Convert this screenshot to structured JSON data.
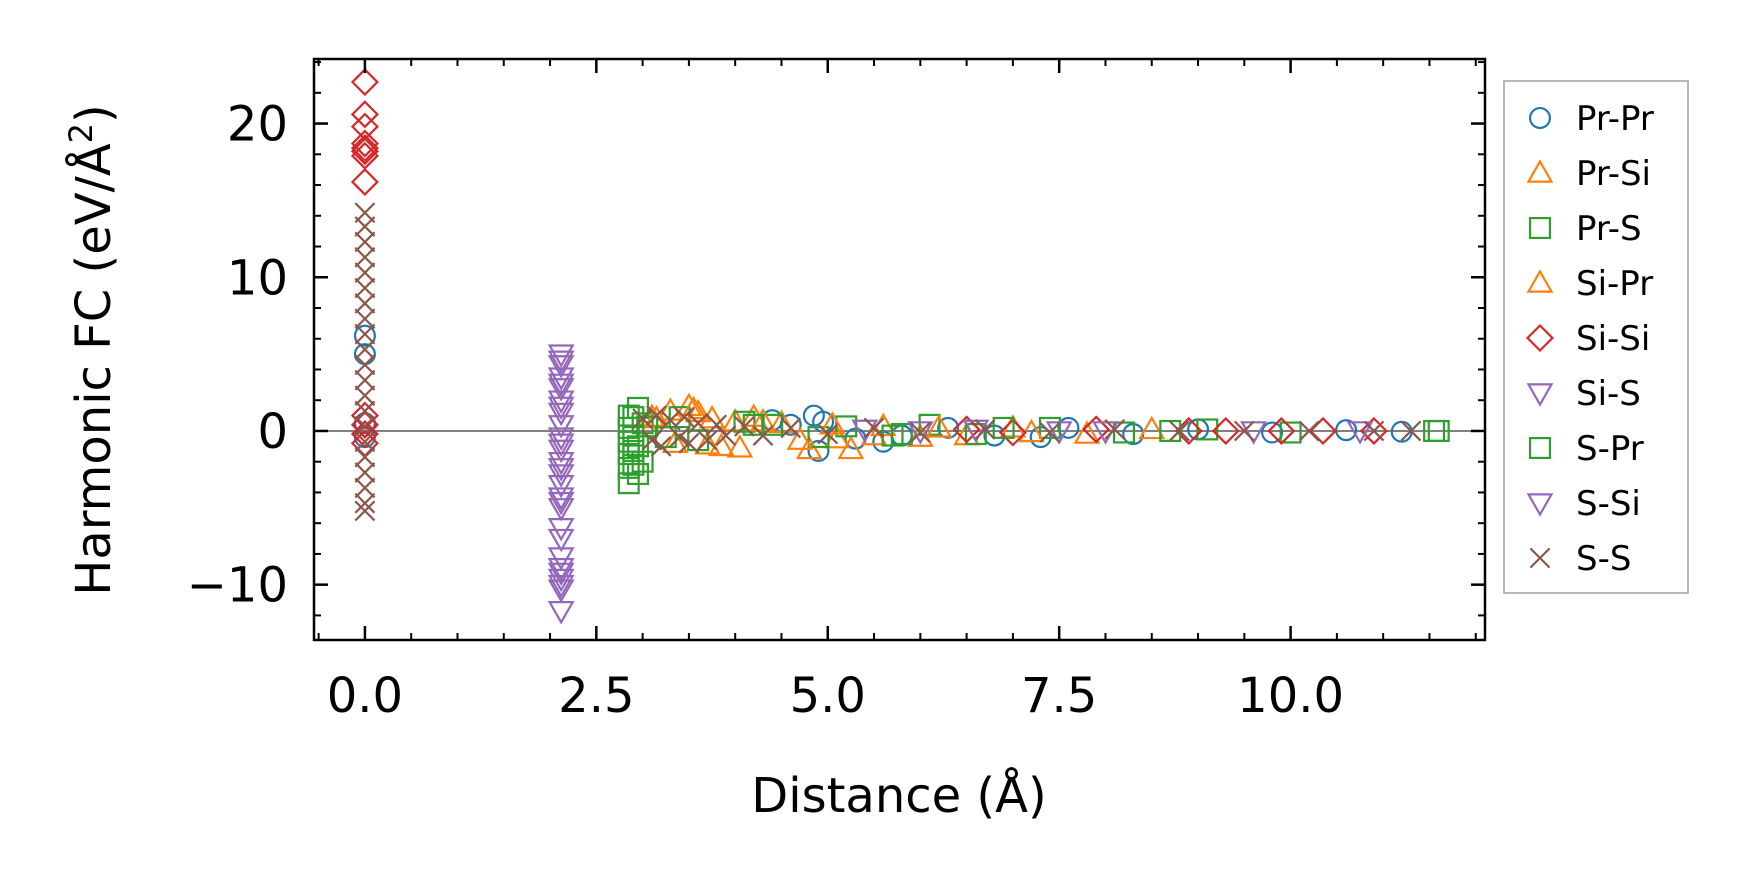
{
  "chart_data": {
    "type": "scatter",
    "title": "",
    "xlabel": "Distance (Å)",
    "ylabel_main": "Harmonic FC (eV/Å",
    "ylabel_sup": "2",
    "ylabel_close": ")",
    "xlim": [
      -0.55,
      12.1
    ],
    "ylim": [
      -13.6,
      24.2
    ],
    "xticks": [
      0.0,
      2.5,
      5.0,
      7.5,
      10.0
    ],
    "xtick_labels": [
      "0.0",
      "2.5",
      "5.0",
      "7.5",
      "10.0"
    ],
    "yticks": [
      -10,
      0,
      10,
      20
    ],
    "ytick_labels": [
      "−10",
      "0",
      "10",
      "20"
    ],
    "zero_line": 0,
    "legend_position": "right, outside axes",
    "series": [
      {
        "name": "Pr-Pr",
        "marker": "circle",
        "color": "#1f77b4",
        "points": [
          [
            0.0,
            6.2
          ],
          [
            0.0,
            5.0
          ],
          [
            0.0,
            0.5
          ],
          [
            0.0,
            -0.4
          ],
          [
            4.4,
            0.7
          ],
          [
            4.6,
            0.4
          ],
          [
            4.85,
            1.0
          ],
          [
            4.9,
            -1.3
          ],
          [
            4.95,
            0.6
          ],
          [
            5.3,
            -0.5
          ],
          [
            5.6,
            -0.7
          ],
          [
            5.8,
            -0.3
          ],
          [
            6.3,
            0.2
          ],
          [
            6.8,
            -0.3
          ],
          [
            7.3,
            -0.4
          ],
          [
            7.6,
            0.2
          ],
          [
            8.3,
            -0.2
          ],
          [
            9.0,
            0.1
          ],
          [
            9.8,
            -0.1
          ],
          [
            10.6,
            0.05
          ],
          [
            11.2,
            -0.05
          ]
        ]
      },
      {
        "name": "Pr-Si",
        "marker": "triangle-up",
        "color": "#ff7f0e",
        "points": [
          [
            3.1,
            0.9
          ],
          [
            3.3,
            1.3
          ],
          [
            3.5,
            1.6
          ],
          [
            3.6,
            1.2
          ],
          [
            3.7,
            -0.9
          ],
          [
            3.75,
            0.8
          ],
          [
            4.0,
            0.6
          ],
          [
            4.05,
            -1.1
          ],
          [
            4.2,
            0.9
          ],
          [
            4.5,
            0.5
          ],
          [
            4.8,
            -1.2
          ],
          [
            5.1,
            -0.5
          ],
          [
            5.25,
            -1.2
          ],
          [
            5.6,
            0.3
          ],
          [
            6.0,
            -0.4
          ],
          [
            6.5,
            -0.3
          ],
          [
            7.0,
            0.2
          ],
          [
            7.8,
            -0.2
          ],
          [
            8.5,
            0.1
          ]
        ]
      },
      {
        "name": "Pr-S",
        "marker": "square",
        "color": "#2ca02c",
        "points": [
          [
            2.85,
            1.0
          ],
          [
            2.85,
            0.2
          ],
          [
            2.85,
            -0.7
          ],
          [
            2.85,
            -1.5
          ],
          [
            2.85,
            -2.4
          ],
          [
            2.85,
            -3.4
          ],
          [
            2.95,
            1.5
          ],
          [
            2.95,
            -1.0
          ],
          [
            2.95,
            -2.8
          ],
          [
            3.0,
            0.5
          ],
          [
            3.0,
            -2.0
          ],
          [
            3.4,
            0.9
          ],
          [
            3.6,
            -0.6
          ],
          [
            4.1,
            0.6
          ],
          [
            4.4,
            0.4
          ],
          [
            4.9,
            -0.4
          ],
          [
            5.2,
            0.3
          ],
          [
            5.8,
            -0.2
          ],
          [
            6.1,
            0.4
          ],
          [
            6.6,
            -0.2
          ],
          [
            7.4,
            0.2
          ],
          [
            8.2,
            -0.1
          ],
          [
            9.1,
            0.1
          ],
          [
            10.0,
            -0.1
          ],
          [
            11.6,
            0.0
          ]
        ]
      },
      {
        "name": "Si-Pr",
        "marker": "triangle-up",
        "color": "#ff7f0e",
        "points": [
          [
            3.15,
            0.8
          ],
          [
            3.35,
            -0.8
          ],
          [
            3.55,
            1.4
          ],
          [
            3.85,
            -1.0
          ],
          [
            4.3,
            0.6
          ],
          [
            4.7,
            -0.6
          ],
          [
            5.05,
            0.4
          ],
          [
            5.5,
            -0.3
          ],
          [
            6.2,
            0.2
          ],
          [
            7.2,
            -0.1
          ]
        ]
      },
      {
        "name": "Si-Si",
        "marker": "diamond",
        "color": "#d62728",
        "points": [
          [
            0.0,
            22.7
          ],
          [
            0.0,
            20.6
          ],
          [
            0.0,
            19.8
          ],
          [
            0.0,
            18.7
          ],
          [
            0.0,
            18.4
          ],
          [
            0.0,
            18.2
          ],
          [
            0.0,
            17.9
          ],
          [
            0.0,
            16.2
          ],
          [
            0.0,
            1.0
          ],
          [
            0.0,
            0.4
          ],
          [
            0.0,
            -0.2
          ],
          [
            0.0,
            -0.8
          ],
          [
            6.5,
            0.1
          ],
          [
            7.0,
            -0.1
          ],
          [
            7.9,
            0.1
          ],
          [
            8.9,
            0.0
          ],
          [
            9.3,
            0.0
          ],
          [
            9.9,
            0.0
          ],
          [
            10.35,
            0.0
          ],
          [
            10.9,
            0.0
          ]
        ]
      },
      {
        "name": "Si-S",
        "marker": "triangle-down",
        "color": "#9467bd",
        "points": [
          [
            2.12,
            5.0
          ],
          [
            2.12,
            4.3
          ],
          [
            2.12,
            3.5
          ],
          [
            2.12,
            2.8
          ],
          [
            2.12,
            2.0
          ],
          [
            2.12,
            1.2
          ],
          [
            2.12,
            0.4
          ],
          [
            2.12,
            -0.4
          ],
          [
            2.12,
            -1.2
          ],
          [
            2.12,
            -2.0
          ],
          [
            2.12,
            -2.8
          ],
          [
            2.12,
            -3.5
          ],
          [
            2.12,
            -4.3
          ],
          [
            2.12,
            -5.0
          ],
          [
            2.12,
            -6.3
          ],
          [
            2.12,
            -8.2
          ],
          [
            2.12,
            -8.9
          ],
          [
            2.12,
            -9.6
          ],
          [
            2.12,
            -10.3
          ],
          [
            2.12,
            -11.7
          ],
          [
            6.6,
            0.1
          ],
          [
            7.5,
            0.0
          ],
          [
            9.6,
            0.0
          ],
          [
            10.75,
            0.0
          ]
        ]
      },
      {
        "name": "S-Pr",
        "marker": "square",
        "color": "#2ca02c",
        "points": [
          [
            2.9,
            0.9
          ],
          [
            2.9,
            -0.3
          ],
          [
            2.9,
            -1.3
          ],
          [
            2.9,
            -2.2
          ],
          [
            3.05,
            0.3
          ],
          [
            3.25,
            -0.4
          ],
          [
            4.2,
            0.4
          ],
          [
            5.7,
            -0.3
          ],
          [
            6.9,
            0.2
          ],
          [
            8.7,
            0.0
          ],
          [
            11.55,
            0.0
          ]
        ]
      },
      {
        "name": "S-Si",
        "marker": "triangle-down",
        "color": "#9467bd",
        "points": [
          [
            2.12,
            4.6
          ],
          [
            2.12,
            3.1
          ],
          [
            2.12,
            1.6
          ],
          [
            2.12,
            -0.8
          ],
          [
            2.12,
            -2.4
          ],
          [
            2.12,
            -4.6
          ],
          [
            2.12,
            -7.0
          ],
          [
            2.12,
            -9.2
          ],
          [
            2.12,
            -10.0
          ],
          [
            5.4,
            0.1
          ],
          [
            6.0,
            0.0
          ],
          [
            8.0,
            0.0
          ]
        ]
      },
      {
        "name": "S-S",
        "marker": "x",
        "color": "#8c564b",
        "points": [
          [
            0.0,
            14.2
          ],
          [
            0.0,
            13.3
          ],
          [
            0.0,
            12.3
          ],
          [
            0.0,
            11.3
          ],
          [
            0.0,
            10.3
          ],
          [
            0.0,
            9.3
          ],
          [
            0.0,
            8.3
          ],
          [
            0.0,
            7.3
          ],
          [
            0.0,
            6.3
          ],
          [
            0.0,
            5.3
          ],
          [
            0.0,
            4.3
          ],
          [
            0.0,
            3.3
          ],
          [
            0.0,
            2.3
          ],
          [
            0.0,
            1.3
          ],
          [
            0.0,
            0.3
          ],
          [
            0.0,
            -0.7
          ],
          [
            0.0,
            -1.7
          ],
          [
            0.0,
            -2.7
          ],
          [
            0.0,
            -3.7
          ],
          [
            0.0,
            -4.7
          ],
          [
            0.0,
            -5.2
          ],
          [
            3.0,
            0.8
          ],
          [
            3.1,
            -0.6
          ],
          [
            3.15,
            1.0
          ],
          [
            3.2,
            -1.0
          ],
          [
            3.3,
            0.7
          ],
          [
            3.4,
            -0.4
          ],
          [
            3.45,
            0.9
          ],
          [
            3.5,
            -0.8
          ],
          [
            3.6,
            0.5
          ],
          [
            3.7,
            -0.6
          ],
          [
            3.8,
            0.4
          ],
          [
            3.9,
            -0.3
          ],
          [
            4.1,
            0.3
          ],
          [
            4.3,
            -0.3
          ],
          [
            4.6,
            0.2
          ],
          [
            5.0,
            -0.2
          ],
          [
            5.5,
            0.2
          ],
          [
            6.0,
            -0.1
          ],
          [
            6.7,
            0.1
          ],
          [
            7.4,
            -0.1
          ],
          [
            8.1,
            0.1
          ],
          [
            8.8,
            0.0
          ],
          [
            9.5,
            0.0
          ],
          [
            10.2,
            0.0
          ],
          [
            10.9,
            0.0
          ],
          [
            11.3,
            0.0
          ]
        ]
      }
    ]
  }
}
